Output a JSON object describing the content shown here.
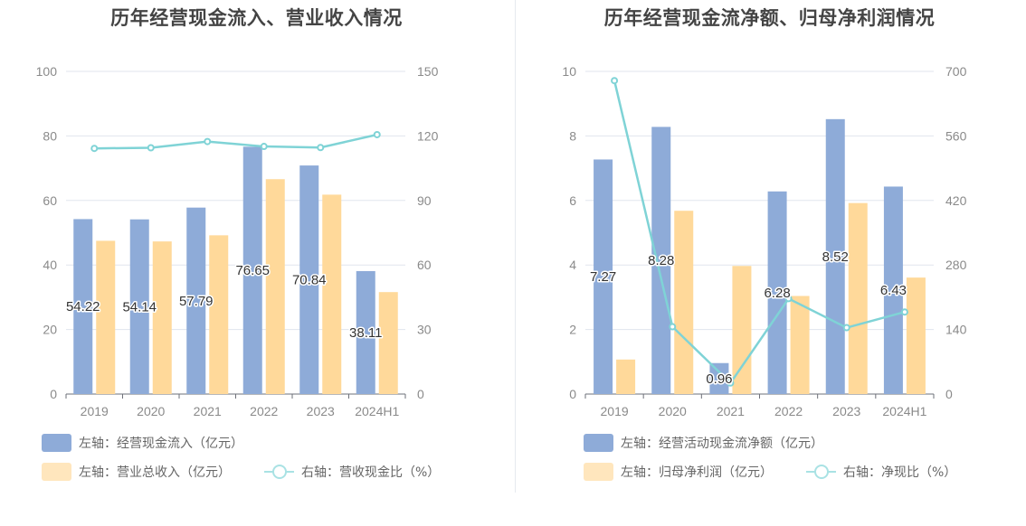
{
  "chart_data": [
    {
      "type": "bar",
      "title": "历年经营现金流入、营业收入情况",
      "categories": [
        "2019",
        "2020",
        "2021",
        "2022",
        "2023",
        "2024H1"
      ],
      "left_axis": {
        "ylim": [
          0,
          100
        ],
        "ticks": [
          "0",
          "20",
          "40",
          "60",
          "80",
          "100"
        ]
      },
      "right_axis": {
        "ylim": [
          0,
          150
        ],
        "ticks": [
          "0",
          "30",
          "60",
          "90",
          "120",
          "150"
        ]
      },
      "grid": true,
      "legend_position": "bottom",
      "series": [
        {
          "name": "左轴：经营现金流入（亿元）",
          "type": "bar",
          "axis": "left",
          "color": "#8eabd8",
          "values": [
            54.22,
            54.14,
            57.79,
            76.65,
            70.84,
            38.11
          ],
          "labels": [
            "54.22",
            "54.14",
            "57.79",
            "76.65",
            "70.84",
            "38.11"
          ]
        },
        {
          "name": "左轴：营业总收入（亿元）",
          "type": "bar",
          "axis": "left",
          "color": "#ffd99a",
          "values": [
            47.5,
            47.3,
            49.2,
            66.6,
            61.8,
            31.6
          ]
        },
        {
          "name": "右轴：营收现金比（%）",
          "type": "line",
          "axis": "right",
          "color": "#7fd3d6",
          "values": [
            114.2,
            114.5,
            117.4,
            115.1,
            114.6,
            120.6
          ]
        }
      ]
    },
    {
      "type": "bar",
      "title": "历年经营现金流净额、归母净利润情况",
      "categories": [
        "2019",
        "2020",
        "2021",
        "2022",
        "2023",
        "2024H1"
      ],
      "left_axis": {
        "ylim": [
          0,
          10
        ],
        "ticks": [
          "0",
          "2",
          "4",
          "6",
          "8",
          "10"
        ]
      },
      "right_axis": {
        "ylim": [
          0,
          700
        ],
        "ticks": [
          "0",
          "140",
          "280",
          "420",
          "560",
          "700"
        ]
      },
      "grid": true,
      "legend_position": "bottom",
      "series": [
        {
          "name": "左轴：经营活动现金流净额（亿元）",
          "type": "bar",
          "axis": "left",
          "color": "#8eabd8",
          "values": [
            7.27,
            8.28,
            0.96,
            6.28,
            8.52,
            6.43
          ],
          "labels": [
            "7.27",
            "8.28",
            "0.96",
            "6.28",
            "8.52",
            "6.43"
          ]
        },
        {
          "name": "左轴：归母净利润（亿元）",
          "type": "bar",
          "axis": "left",
          "color": "#ffd99a",
          "values": [
            1.07,
            5.68,
            3.97,
            3.04,
            5.92,
            3.61
          ]
        },
        {
          "name": "右轴：净现比（%）",
          "type": "line",
          "axis": "right",
          "color": "#7fd3d6",
          "values": [
            680,
            146,
            24,
            207,
            144,
            178
          ]
        }
      ]
    }
  ]
}
